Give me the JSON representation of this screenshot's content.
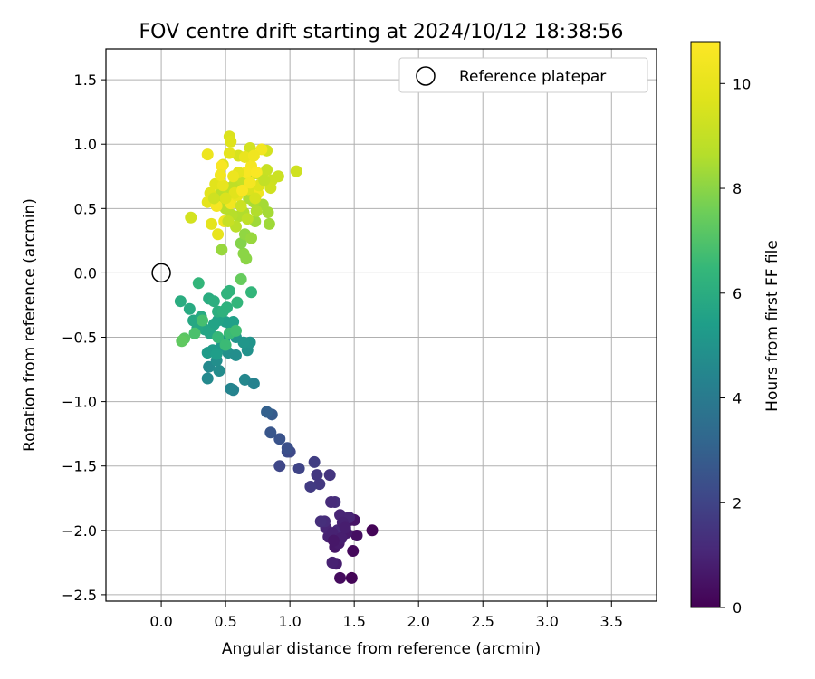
{
  "chart_data": {
    "type": "scatter",
    "title": "FOV centre drift starting at 2024/10/12 18:38:56",
    "xlabel": "Angular distance from reference (arcmin)",
    "ylabel": "Rotation from reference (arcmin)",
    "xlim": [
      -0.43,
      3.85
    ],
    "ylim": [
      -2.55,
      1.74
    ],
    "xticks": [
      0.0,
      0.5,
      1.0,
      1.5,
      2.0,
      2.5,
      3.0,
      3.5
    ],
    "xtick_labels": [
      "0.0",
      "0.5",
      "1.0",
      "1.5",
      "2.0",
      "2.5",
      "3.0",
      "3.5"
    ],
    "yticks": [
      -2.5,
      -2.0,
      -1.5,
      -1.0,
      -0.5,
      0.0,
      0.5,
      1.0,
      1.5
    ],
    "ytick_labels": [
      "−2.5",
      "−2.0",
      "−1.5",
      "−1.0",
      "−0.5",
      "0.0",
      "0.5",
      "1.0",
      "1.5"
    ],
    "grid": true,
    "legend": {
      "position": "upper-right",
      "entries": [
        "Reference platepar"
      ]
    },
    "reference_point": {
      "x": 0.0,
      "y": 0.0,
      "label": "Reference platepar"
    },
    "colorbar": {
      "label": "Hours from first FF file",
      "range": [
        0,
        10.8
      ],
      "ticks": [
        0,
        2,
        4,
        6,
        8,
        10
      ],
      "tick_labels": [
        "0",
        "2",
        "4",
        "6",
        "8",
        "10"
      ],
      "colormap": "viridis"
    },
    "points": [
      {
        "x": 1.48,
        "y": -2.37,
        "h": 0.1
      },
      {
        "x": 1.39,
        "y": -2.37,
        "h": 0.3
      },
      {
        "x": 1.49,
        "y": -2.16,
        "h": 0.2
      },
      {
        "x": 1.64,
        "y": -2.0,
        "h": 0.1
      },
      {
        "x": 1.52,
        "y": -2.04,
        "h": 0.4
      },
      {
        "x": 1.47,
        "y": -1.92,
        "h": 0.5
      },
      {
        "x": 1.35,
        "y": -2.13,
        "h": 0.6
      },
      {
        "x": 1.36,
        "y": -2.26,
        "h": 0.8
      },
      {
        "x": 1.33,
        "y": -2.25,
        "h": 0.9
      },
      {
        "x": 1.38,
        "y": -2.1,
        "h": 0.7
      },
      {
        "x": 1.3,
        "y": -2.05,
        "h": 0.9
      },
      {
        "x": 1.28,
        "y": -1.98,
        "h": 1.0
      },
      {
        "x": 1.42,
        "y": -1.95,
        "h": 0.6
      },
      {
        "x": 1.39,
        "y": -1.88,
        "h": 1.0
      },
      {
        "x": 1.44,
        "y": -2.02,
        "h": 0.7
      },
      {
        "x": 1.37,
        "y": -2.0,
        "h": 1.1
      },
      {
        "x": 1.33,
        "y": -2.02,
        "h": 0.9
      },
      {
        "x": 1.27,
        "y": -1.93,
        "h": 1.2
      },
      {
        "x": 1.24,
        "y": -1.93,
        "h": 1.3
      },
      {
        "x": 1.5,
        "y": -1.92,
        "h": 0.5
      },
      {
        "x": 1.46,
        "y": -1.9,
        "h": 1.0
      },
      {
        "x": 1.41,
        "y": -1.94,
        "h": 0.9
      },
      {
        "x": 1.35,
        "y": -1.78,
        "h": 1.3
      },
      {
        "x": 1.32,
        "y": -1.78,
        "h": 1.2
      },
      {
        "x": 1.4,
        "y": -2.06,
        "h": 0.8
      },
      {
        "x": 1.34,
        "y": -2.08,
        "h": 0.6
      },
      {
        "x": 1.43,
        "y": -1.98,
        "h": 0.8
      },
      {
        "x": 1.31,
        "y": -1.57,
        "h": 1.5
      },
      {
        "x": 1.21,
        "y": -1.57,
        "h": 1.6
      },
      {
        "x": 1.23,
        "y": -1.64,
        "h": 1.6
      },
      {
        "x": 1.16,
        "y": -1.66,
        "h": 1.7
      },
      {
        "x": 1.19,
        "y": -1.47,
        "h": 1.8
      },
      {
        "x": 1.07,
        "y": -1.52,
        "h": 2.0
      },
      {
        "x": 0.92,
        "y": -1.5,
        "h": 2.1
      },
      {
        "x": 0.98,
        "y": -1.39,
        "h": 2.3
      },
      {
        "x": 1.0,
        "y": -1.39,
        "h": 2.2
      },
      {
        "x": 0.98,
        "y": -1.36,
        "h": 2.4
      },
      {
        "x": 0.92,
        "y": -1.29,
        "h": 2.5
      },
      {
        "x": 0.85,
        "y": -1.24,
        "h": 2.6
      },
      {
        "x": 0.86,
        "y": -1.1,
        "h": 2.8
      },
      {
        "x": 0.82,
        "y": -1.08,
        "h": 3.0
      },
      {
        "x": 0.56,
        "y": -0.91,
        "h": 4.3
      },
      {
        "x": 0.54,
        "y": -0.9,
        "h": 4.4
      },
      {
        "x": 0.65,
        "y": -0.83,
        "h": 4.5
      },
      {
        "x": 0.72,
        "y": -0.86,
        "h": 4.3
      },
      {
        "x": 0.36,
        "y": -0.82,
        "h": 4.6
      },
      {
        "x": 0.37,
        "y": -0.73,
        "h": 4.6
      },
      {
        "x": 0.45,
        "y": -0.76,
        "h": 4.7
      },
      {
        "x": 0.43,
        "y": -0.68,
        "h": 4.8
      },
      {
        "x": 0.52,
        "y": -0.62,
        "h": 4.9
      },
      {
        "x": 0.58,
        "y": -0.64,
        "h": 4.8
      },
      {
        "x": 0.67,
        "y": -0.6,
        "h": 4.9
      },
      {
        "x": 0.69,
        "y": -0.54,
        "h": 5.0
      },
      {
        "x": 0.64,
        "y": -0.54,
        "h": 5.1
      },
      {
        "x": 0.58,
        "y": -0.5,
        "h": 5.0
      },
      {
        "x": 0.49,
        "y": -0.53,
        "h": 5.2
      },
      {
        "x": 0.47,
        "y": -0.57,
        "h": 5.2
      },
      {
        "x": 0.4,
        "y": -0.6,
        "h": 5.3
      },
      {
        "x": 0.36,
        "y": -0.62,
        "h": 5.3
      },
      {
        "x": 0.43,
        "y": -0.63,
        "h": 5.4
      },
      {
        "x": 0.55,
        "y": -0.42,
        "h": 5.4
      },
      {
        "x": 0.56,
        "y": -0.38,
        "h": 5.5
      },
      {
        "x": 0.5,
        "y": -0.38,
        "h": 5.5
      },
      {
        "x": 0.44,
        "y": -0.37,
        "h": 5.6
      },
      {
        "x": 0.41,
        "y": -0.4,
        "h": 5.6
      },
      {
        "x": 0.38,
        "y": -0.47,
        "h": 5.7
      },
      {
        "x": 0.34,
        "y": -0.44,
        "h": 5.7
      },
      {
        "x": 0.28,
        "y": -0.43,
        "h": 5.8
      },
      {
        "x": 0.25,
        "y": -0.37,
        "h": 5.8
      },
      {
        "x": 0.31,
        "y": -0.34,
        "h": 5.9
      },
      {
        "x": 0.22,
        "y": -0.28,
        "h": 5.9
      },
      {
        "x": 0.15,
        "y": -0.22,
        "h": 6.0
      },
      {
        "x": 0.37,
        "y": -0.2,
        "h": 6.0
      },
      {
        "x": 0.41,
        "y": -0.22,
        "h": 6.1
      },
      {
        "x": 0.44,
        "y": -0.3,
        "h": 6.1
      },
      {
        "x": 0.48,
        "y": -0.3,
        "h": 6.2
      },
      {
        "x": 0.51,
        "y": -0.27,
        "h": 6.2
      },
      {
        "x": 0.51,
        "y": -0.16,
        "h": 6.3
      },
      {
        "x": 0.53,
        "y": -0.14,
        "h": 6.3
      },
      {
        "x": 0.59,
        "y": -0.23,
        "h": 6.4
      },
      {
        "x": 0.7,
        "y": -0.15,
        "h": 6.4
      },
      {
        "x": 0.29,
        "y": -0.08,
        "h": 6.4
      },
      {
        "x": 0.44,
        "y": -0.5,
        "h": 6.5
      },
      {
        "x": 0.5,
        "y": -0.56,
        "h": 6.6
      },
      {
        "x": 0.53,
        "y": -0.47,
        "h": 6.6
      },
      {
        "x": 0.58,
        "y": -0.45,
        "h": 6.7
      },
      {
        "x": 0.32,
        "y": -0.37,
        "h": 6.8
      },
      {
        "x": 0.26,
        "y": -0.47,
        "h": 6.9
      },
      {
        "x": 0.18,
        "y": -0.51,
        "h": 7.2
      },
      {
        "x": 0.16,
        "y": -0.53,
        "h": 7.3
      },
      {
        "x": 0.62,
        "y": -0.05,
        "h": 7.4
      },
      {
        "x": 0.66,
        "y": 0.11,
        "h": 8.0
      },
      {
        "x": 0.64,
        "y": 0.15,
        "h": 8.0
      },
      {
        "x": 0.62,
        "y": 0.23,
        "h": 7.9
      },
      {
        "x": 0.65,
        "y": 0.3,
        "h": 8.1
      },
      {
        "x": 0.47,
        "y": 0.18,
        "h": 8.2
      },
      {
        "x": 0.7,
        "y": 0.27,
        "h": 8.2
      },
      {
        "x": 0.73,
        "y": 0.4,
        "h": 8.3
      },
      {
        "x": 0.84,
        "y": 0.38,
        "h": 8.3
      },
      {
        "x": 0.83,
        "y": 0.47,
        "h": 8.4
      },
      {
        "x": 0.79,
        "y": 0.53,
        "h": 8.4
      },
      {
        "x": 0.72,
        "y": 0.55,
        "h": 8.5
      },
      {
        "x": 0.68,
        "y": 0.58,
        "h": 8.5
      },
      {
        "x": 0.64,
        "y": 0.47,
        "h": 8.6
      },
      {
        "x": 0.6,
        "y": 0.44,
        "h": 8.6
      },
      {
        "x": 0.55,
        "y": 0.45,
        "h": 8.7
      },
      {
        "x": 0.5,
        "y": 0.5,
        "h": 8.7
      },
      {
        "x": 0.44,
        "y": 0.55,
        "h": 8.8
      },
      {
        "x": 0.47,
        "y": 0.63,
        "h": 8.8
      },
      {
        "x": 0.52,
        "y": 0.66,
        "h": 8.9
      },
      {
        "x": 0.57,
        "y": 0.69,
        "h": 8.9
      },
      {
        "x": 0.63,
        "y": 0.72,
        "h": 9.0
      },
      {
        "x": 0.69,
        "y": 0.75,
        "h": 9.0
      },
      {
        "x": 0.75,
        "y": 0.77,
        "h": 9.1
      },
      {
        "x": 0.82,
        "y": 0.8,
        "h": 9.1
      },
      {
        "x": 0.86,
        "y": 0.72,
        "h": 9.2
      },
      {
        "x": 0.91,
        "y": 0.75,
        "h": 9.2
      },
      {
        "x": 1.05,
        "y": 0.79,
        "h": 9.3
      },
      {
        "x": 0.85,
        "y": 0.66,
        "h": 9.3
      },
      {
        "x": 0.82,
        "y": 0.95,
        "h": 9.4
      },
      {
        "x": 0.69,
        "y": 0.97,
        "h": 9.4
      },
      {
        "x": 0.6,
        "y": 0.91,
        "h": 9.5
      },
      {
        "x": 0.53,
        "y": 1.06,
        "h": 9.6
      },
      {
        "x": 0.54,
        "y": 1.02,
        "h": 9.7
      },
      {
        "x": 0.48,
        "y": 0.84,
        "h": 9.7
      },
      {
        "x": 0.42,
        "y": 0.69,
        "h": 9.8
      },
      {
        "x": 0.38,
        "y": 0.62,
        "h": 9.8
      },
      {
        "x": 0.36,
        "y": 0.55,
        "h": 9.9
      },
      {
        "x": 0.39,
        "y": 0.38,
        "h": 9.9
      },
      {
        "x": 0.44,
        "y": 0.3,
        "h": 10.0
      },
      {
        "x": 0.23,
        "y": 0.43,
        "h": 9.4
      },
      {
        "x": 0.36,
        "y": 0.92,
        "h": 10.2
      },
      {
        "x": 0.49,
        "y": 0.4,
        "h": 10.3
      },
      {
        "x": 0.54,
        "y": 0.54,
        "h": 10.4
      },
      {
        "x": 0.43,
        "y": 0.52,
        "h": 10.5
      },
      {
        "x": 0.47,
        "y": 0.83,
        "h": 10.6
      },
      {
        "x": 0.75,
        "y": 0.62,
        "h": 10.3
      },
      {
        "x": 0.78,
        "y": 0.96,
        "h": 10.4
      },
      {
        "x": 0.7,
        "y": 0.83,
        "h": 10.5
      },
      {
        "x": 0.66,
        "y": 0.78,
        "h": 10.6
      },
      {
        "x": 0.74,
        "y": 0.78,
        "h": 10.7
      },
      {
        "x": 0.59,
        "y": 0.6,
        "h": 10.1
      },
      {
        "x": 0.68,
        "y": 0.65,
        "h": 9.6
      },
      {
        "x": 0.6,
        "y": 0.78,
        "h": 9.9
      },
      {
        "x": 0.56,
        "y": 0.75,
        "h": 10.2
      },
      {
        "x": 0.48,
        "y": 0.68,
        "h": 10.0
      },
      {
        "x": 0.76,
        "y": 0.68,
        "h": 9.7
      },
      {
        "x": 0.73,
        "y": 0.58,
        "h": 9.5
      },
      {
        "x": 0.8,
        "y": 0.72,
        "h": 9.0
      },
      {
        "x": 0.62,
        "y": 0.52,
        "h": 9.2
      },
      {
        "x": 0.67,
        "y": 0.42,
        "h": 8.9
      },
      {
        "x": 0.58,
        "y": 0.36,
        "h": 8.8
      },
      {
        "x": 0.52,
        "y": 0.4,
        "h": 9.1
      },
      {
        "x": 0.74,
        "y": 0.48,
        "h": 8.6
      },
      {
        "x": 0.57,
        "y": 0.62,
        "h": 9.8
      },
      {
        "x": 0.65,
        "y": 0.9,
        "h": 10.1
      },
      {
        "x": 0.72,
        "y": 0.91,
        "h": 10.3
      },
      {
        "x": 0.53,
        "y": 0.93,
        "h": 9.9
      },
      {
        "x": 0.46,
        "y": 0.76,
        "h": 10.4
      },
      {
        "x": 0.63,
        "y": 0.64,
        "h": 10.6
      },
      {
        "x": 0.69,
        "y": 0.7,
        "h": 10.5
      },
      {
        "x": 0.5,
        "y": 0.58,
        "h": 9.6
      },
      {
        "x": 0.41,
        "y": 0.58,
        "h": 9.3
      }
    ]
  }
}
